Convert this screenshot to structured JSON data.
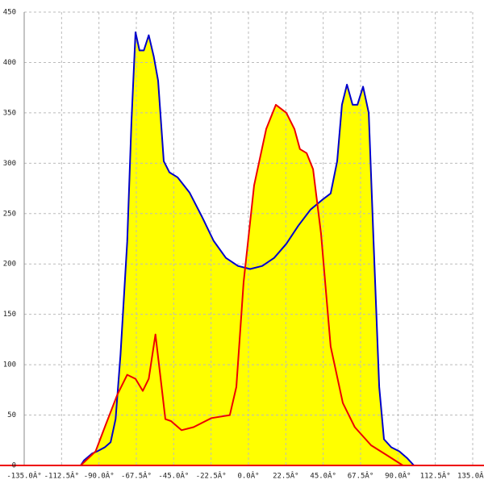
{
  "chart_data": {
    "type": "area",
    "xlim": [
      -135,
      135
    ],
    "ylim": [
      0,
      450
    ],
    "xticks": [
      {
        "value": -135,
        "label": "-135.0Â°"
      },
      {
        "value": -112.5,
        "label": "-112.5Â°"
      },
      {
        "value": -90,
        "label": "-90.0Â°"
      },
      {
        "value": -67.5,
        "label": "-67.5Â°"
      },
      {
        "value": -45,
        "label": "-45.0Â°"
      },
      {
        "value": -22.5,
        "label": "-22.5Â°"
      },
      {
        "value": 0,
        "label": "0.0Â°"
      },
      {
        "value": 22.5,
        "label": "22.5Â°"
      },
      {
        "value": 45,
        "label": "45.0Â°"
      },
      {
        "value": 67.5,
        "label": "67.5Â°"
      },
      {
        "value": 90,
        "label": "90.0Â°"
      },
      {
        "value": 112.5,
        "label": "112.5Â°"
      },
      {
        "value": 135,
        "label": "135.0Â°"
      }
    ],
    "yticks": [
      0,
      50,
      100,
      150,
      200,
      250,
      300,
      350,
      400,
      450
    ],
    "grid": true,
    "series": [
      {
        "color": "#0000cc",
        "fill": "#ffff00",
        "x": [
          -101,
          -99,
          -94,
          -91,
          -86.5,
          -83,
          -80,
          -77,
          -73,
          -70.4,
          -68,
          -65.6,
          -63,
          -60,
          -57,
          -54.4,
          -51,
          -47.6,
          -42.7,
          -35.5,
          -28,
          -21,
          -13.6,
          -6.3,
          1,
          8.3,
          15.5,
          22.8,
          30,
          37.4,
          44.7,
          49.5,
          53.4,
          56.3,
          59.3,
          62.7,
          65.6,
          69,
          72.4,
          75.3,
          78.7,
          81.6,
          86,
          90.8,
          95.7,
          99.6
        ],
        "values": [
          0,
          5,
          12,
          14,
          18,
          23,
          46,
          110,
          222,
          342,
          430,
          412,
          412,
          427,
          406,
          382,
          302,
          291,
          286,
          271,
          247,
          223,
          206,
          198,
          195,
          198,
          206,
          220,
          238,
          254,
          264,
          270,
          302,
          358,
          378,
          358,
          358,
          376,
          350,
          222,
          78,
          26,
          18,
          14,
          7,
          0
        ]
      },
      {
        "color": "#ee0000",
        "fill": "#ffff00",
        "x": [
          -101,
          -92,
          -86.5,
          -79,
          -73,
          -68,
          -63.6,
          -60,
          -56,
          -53.4,
          -50,
          -46.6,
          -40.3,
          -33,
          -22.3,
          -11.2,
          -7.3,
          -2.9,
          3.4,
          10.7,
          16.5,
          22.8,
          27.7,
          31,
          35,
          38.9,
          43.7,
          49.5,
          56.8,
          64,
          73.8,
          83.5,
          93
        ],
        "values": [
          0,
          14,
          38,
          70,
          90,
          86,
          74,
          86,
          130,
          94,
          46,
          44,
          35,
          38,
          47,
          50,
          78,
          182,
          278,
          334,
          358,
          350,
          334,
          314,
          310,
          294,
          230,
          118,
          62,
          38,
          20,
          10,
          0
        ]
      }
    ]
  }
}
